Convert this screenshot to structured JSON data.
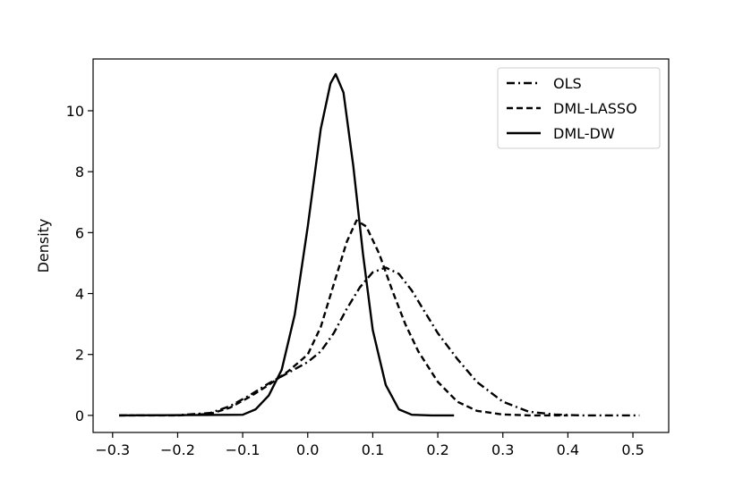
{
  "chart_data": {
    "type": "line",
    "title": "",
    "xlabel": "",
    "ylabel": "Density",
    "xlim": [
      -0.33,
      0.555
    ],
    "ylim": [
      -0.56,
      11.7
    ],
    "xticks": [
      -0.3,
      -0.2,
      -0.1,
      0.0,
      0.1,
      0.2,
      0.3,
      0.4,
      0.5
    ],
    "xtick_labels": [
      "−0.3",
      "−0.2",
      "−0.1",
      "0.0",
      "0.1",
      "0.2",
      "0.3",
      "0.4",
      "0.5"
    ],
    "yticks": [
      0,
      2,
      4,
      6,
      8,
      10
    ],
    "ytick_labels": [
      "0",
      "2",
      "4",
      "6",
      "8",
      "10"
    ],
    "grid": false,
    "legend_position": "top-right",
    "series": [
      {
        "name": "OLS",
        "style": "dashdot",
        "color": "#000000",
        "x": [
          -0.29,
          -0.2,
          -0.15,
          -0.12,
          -0.09,
          -0.06,
          -0.03,
          0.0,
          0.02,
          0.04,
          0.06,
          0.08,
          0.1,
          0.12,
          0.14,
          0.16,
          0.18,
          0.2,
          0.23,
          0.26,
          0.3,
          0.34,
          0.38,
          0.42,
          0.46,
          0.51
        ],
        "y": [
          0.0,
          0.01,
          0.08,
          0.3,
          0.65,
          1.05,
          1.4,
          1.75,
          2.1,
          2.7,
          3.5,
          4.2,
          4.7,
          4.85,
          4.65,
          4.1,
          3.4,
          2.7,
          1.85,
          1.1,
          0.45,
          0.12,
          0.03,
          0.0,
          0.0,
          0.0
        ]
      },
      {
        "name": "DML-LASSO",
        "style": "dashed",
        "color": "#000000",
        "x": [
          -0.29,
          -0.2,
          -0.15,
          -0.12,
          -0.09,
          -0.06,
          -0.03,
          0.0,
          0.02,
          0.04,
          0.06,
          0.075,
          0.09,
          0.11,
          0.13,
          0.15,
          0.17,
          0.2,
          0.23,
          0.26,
          0.3,
          0.34,
          0.4
        ],
        "y": [
          0.0,
          0.0,
          0.05,
          0.25,
          0.6,
          1.0,
          1.45,
          2.0,
          2.9,
          4.3,
          5.7,
          6.4,
          6.2,
          5.3,
          4.1,
          3.0,
          2.1,
          1.1,
          0.45,
          0.15,
          0.03,
          0.0,
          0.0
        ]
      },
      {
        "name": "DML-DW",
        "style": "solid",
        "color": "#000000",
        "x": [
          -0.29,
          -0.1,
          -0.08,
          -0.06,
          -0.04,
          -0.02,
          0.0,
          0.02,
          0.035,
          0.043,
          0.055,
          0.07,
          0.085,
          0.1,
          0.12,
          0.14,
          0.16,
          0.19,
          0.225
        ],
        "y": [
          0.0,
          0.02,
          0.2,
          0.65,
          1.5,
          3.3,
          6.2,
          9.4,
          10.9,
          11.2,
          10.6,
          8.2,
          5.3,
          2.8,
          1.0,
          0.2,
          0.02,
          0.0,
          0.0
        ]
      }
    ]
  }
}
